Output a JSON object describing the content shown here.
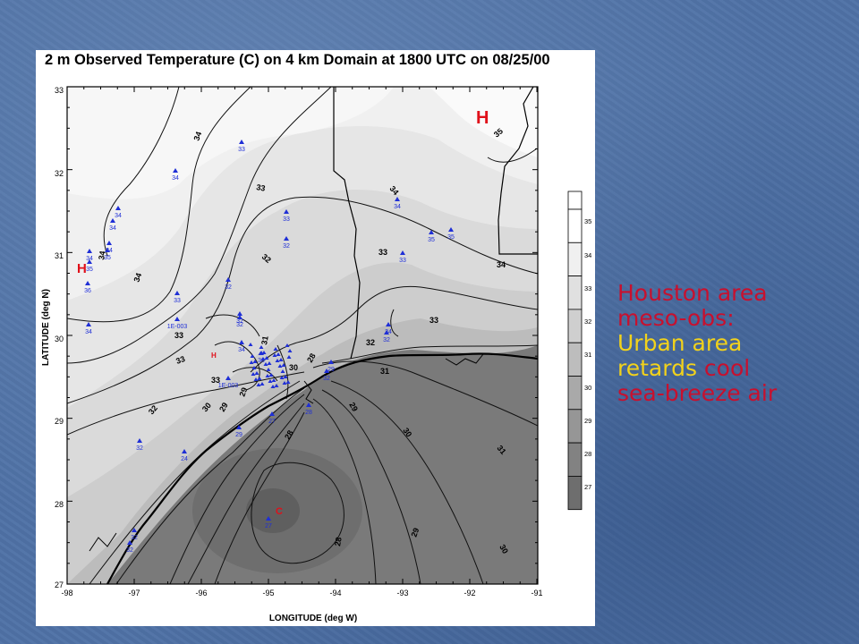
{
  "figure": {
    "title": "2 m Observed Temperature (C) on 4 km Domain at 1800 UTC on 08/25/00",
    "xlabel": "LONGITUDE (deg W)",
    "ylabel": "LATITUDE (deg N)",
    "x_ticks": [
      "-98",
      "-97",
      "-96",
      "-95",
      "-94",
      "-93",
      "-92",
      "-91"
    ],
    "y_ticks": [
      "33",
      "32",
      "31",
      "30",
      "29",
      "28",
      "27"
    ],
    "colorbar_ticks": [
      "35",
      "34",
      "33",
      "32",
      "31",
      "30",
      "29",
      "28",
      "27"
    ],
    "colorbar_colors": [
      "#ffffff",
      "#f0f0f0",
      "#e0e0e0",
      "#cfcfcf",
      "#bdbdbd",
      "#a9a9a9",
      "#969696",
      "#828282",
      "#6e6e6e"
    ],
    "markers": {
      "high_label": "H",
      "high_label_small": "H",
      "cold_label": "C"
    },
    "contour_labels": [
      "35",
      "34",
      "34",
      "34",
      "34",
      "34",
      "33",
      "33",
      "33",
      "33",
      "33",
      "33",
      "32",
      "32",
      "32",
      "31",
      "31",
      "31",
      "30",
      "30",
      "30",
      "30",
      "29",
      "29",
      "29",
      "29",
      "28",
      "28",
      "28"
    ],
    "station_values": [
      "33",
      "34",
      "34",
      "34",
      "34",
      "35",
      "34",
      "35",
      "33",
      "32",
      "34",
      "35",
      "35",
      "33",
      "36",
      "34",
      "32",
      "33",
      "32",
      "32",
      "1E-003",
      "34",
      "32",
      "34",
      "1E-003",
      "30",
      "29",
      "32",
      "28",
      "27",
      "29",
      "32",
      "24",
      "32",
      "32",
      "27"
    ]
  },
  "caption": {
    "line1": "Houston area",
    "line2": "meso-obs:",
    "line3a": "Urban area",
    "line4a": "retards",
    "line4b": " cool",
    "line5": "sea-breeze air"
  },
  "colors": {
    "caption_red": "#c8102e",
    "caption_yellow": "#f2d21b",
    "station_blue": "#1f2fd6",
    "high_red": "#e0101a"
  }
}
